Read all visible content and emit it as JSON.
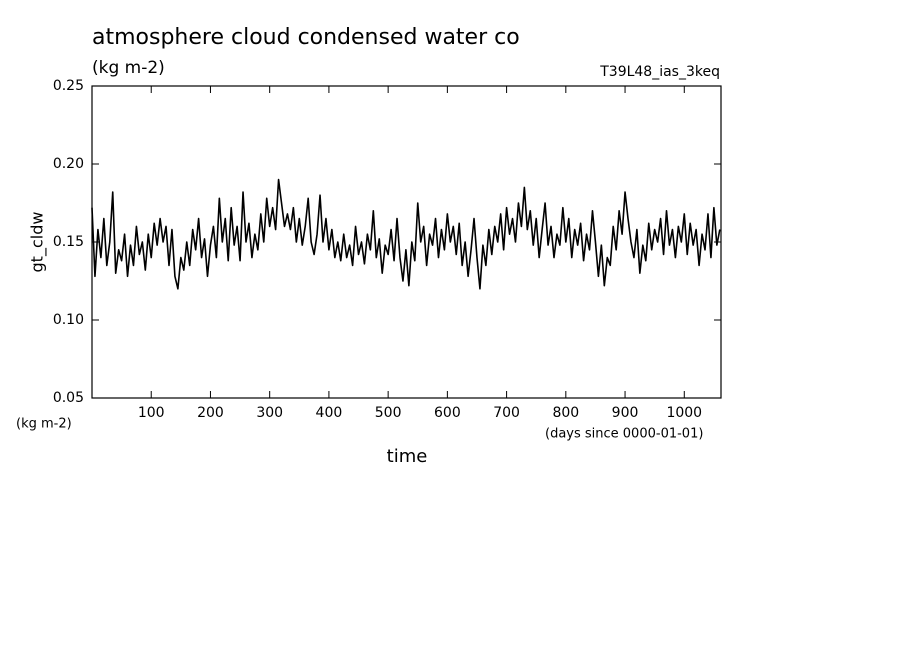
{
  "chart_data": {
    "type": "line",
    "title": "atmosphere cloud condensed water co",
    "subtitle": "(kg m-2)",
    "annotation": "T39L48_ias_3keq",
    "y_label": "gt_cldw",
    "y_units": "(kg m-2)",
    "x_label": "time",
    "x_units": "(days since 0000-01-01)",
    "xlim": [
      0,
      1062
    ],
    "ylim": [
      0.05,
      0.25
    ],
    "xticks": [
      100,
      200,
      300,
      400,
      500,
      600,
      700,
      800,
      900,
      1000
    ],
    "yticks": [
      {
        "value": 0.05,
        "label": "0.05"
      },
      {
        "value": 0.1,
        "label": "0.10"
      },
      {
        "value": 0.15,
        "label": "0.15"
      },
      {
        "value": 0.2,
        "label": "0.20"
      },
      {
        "value": 0.25,
        "label": "0.25"
      }
    ],
    "color": "#000000",
    "x": [
      0,
      5,
      10,
      15,
      20,
      25,
      30,
      35,
      40,
      45,
      50,
      55,
      60,
      65,
      70,
      75,
      80,
      85,
      90,
      95,
      100,
      105,
      110,
      115,
      120,
      125,
      130,
      135,
      140,
      145,
      150,
      155,
      160,
      165,
      170,
      175,
      180,
      185,
      190,
      195,
      200,
      205,
      210,
      215,
      220,
      225,
      230,
      235,
      240,
      245,
      250,
      255,
      260,
      265,
      270,
      275,
      280,
      285,
      290,
      295,
      300,
      305,
      310,
      315,
      320,
      325,
      330,
      335,
      340,
      345,
      350,
      355,
      360,
      365,
      370,
      375,
      380,
      385,
      390,
      395,
      400,
      405,
      410,
      415,
      420,
      425,
      430,
      435,
      440,
      445,
      450,
      455,
      460,
      465,
      470,
      475,
      480,
      485,
      490,
      495,
      500,
      505,
      510,
      515,
      520,
      525,
      530,
      535,
      540,
      545,
      550,
      555,
      560,
      565,
      570,
      575,
      580,
      585,
      590,
      595,
      600,
      605,
      610,
      615,
      620,
      625,
      630,
      635,
      640,
      645,
      650,
      655,
      660,
      665,
      670,
      675,
      680,
      685,
      690,
      695,
      700,
      705,
      710,
      715,
      720,
      725,
      730,
      735,
      740,
      745,
      750,
      755,
      760,
      765,
      770,
      775,
      780,
      785,
      790,
      795,
      800,
      805,
      810,
      815,
      820,
      825,
      830,
      835,
      840,
      845,
      850,
      855,
      860,
      865,
      870,
      875,
      880,
      885,
      890,
      895,
      900,
      905,
      910,
      915,
      920,
      925,
      930,
      935,
      940,
      945,
      950,
      955,
      960,
      965,
      970,
      975,
      980,
      985,
      990,
      995,
      1000,
      1005,
      1010,
      1015,
      1020,
      1025,
      1030,
      1035,
      1040,
      1045,
      1050,
      1055,
      1060
    ],
    "values": [
      0.172,
      0.128,
      0.158,
      0.14,
      0.165,
      0.135,
      0.15,
      0.182,
      0.13,
      0.145,
      0.138,
      0.155,
      0.128,
      0.148,
      0.135,
      0.16,
      0.142,
      0.15,
      0.132,
      0.155,
      0.14,
      0.162,
      0.148,
      0.165,
      0.15,
      0.16,
      0.135,
      0.158,
      0.128,
      0.12,
      0.14,
      0.132,
      0.15,
      0.135,
      0.158,
      0.145,
      0.165,
      0.14,
      0.152,
      0.128,
      0.148,
      0.16,
      0.14,
      0.178,
      0.15,
      0.165,
      0.138,
      0.172,
      0.148,
      0.16,
      0.138,
      0.182,
      0.15,
      0.162,
      0.14,
      0.155,
      0.145,
      0.168,
      0.15,
      0.178,
      0.16,
      0.172,
      0.158,
      0.19,
      0.175,
      0.16,
      0.168,
      0.158,
      0.172,
      0.15,
      0.165,
      0.148,
      0.16,
      0.178,
      0.15,
      0.142,
      0.155,
      0.18,
      0.15,
      0.165,
      0.145,
      0.158,
      0.14,
      0.15,
      0.138,
      0.155,
      0.14,
      0.148,
      0.135,
      0.16,
      0.142,
      0.15,
      0.136,
      0.155,
      0.145,
      0.17,
      0.14,
      0.152,
      0.13,
      0.148,
      0.142,
      0.158,
      0.138,
      0.165,
      0.14,
      0.125,
      0.145,
      0.122,
      0.15,
      0.138,
      0.175,
      0.15,
      0.16,
      0.135,
      0.155,
      0.148,
      0.165,
      0.14,
      0.158,
      0.145,
      0.168,
      0.15,
      0.16,
      0.142,
      0.162,
      0.135,
      0.15,
      0.128,
      0.145,
      0.165,
      0.14,
      0.12,
      0.148,
      0.135,
      0.158,
      0.142,
      0.16,
      0.15,
      0.168,
      0.145,
      0.172,
      0.155,
      0.165,
      0.15,
      0.175,
      0.16,
      0.185,
      0.158,
      0.17,
      0.148,
      0.165,
      0.14,
      0.158,
      0.175,
      0.148,
      0.16,
      0.14,
      0.155,
      0.148,
      0.172,
      0.15,
      0.165,
      0.14,
      0.158,
      0.148,
      0.162,
      0.138,
      0.155,
      0.145,
      0.17,
      0.15,
      0.128,
      0.148,
      0.122,
      0.14,
      0.135,
      0.16,
      0.145,
      0.17,
      0.155,
      0.182,
      0.165,
      0.15,
      0.14,
      0.158,
      0.13,
      0.148,
      0.138,
      0.162,
      0.145,
      0.158,
      0.15,
      0.165,
      0.142,
      0.17,
      0.148,
      0.158,
      0.14,
      0.16,
      0.15,
      0.168,
      0.142,
      0.162,
      0.148,
      0.158,
      0.135,
      0.155,
      0.145,
      0.168,
      0.14,
      0.172,
      0.148,
      0.158
    ]
  }
}
